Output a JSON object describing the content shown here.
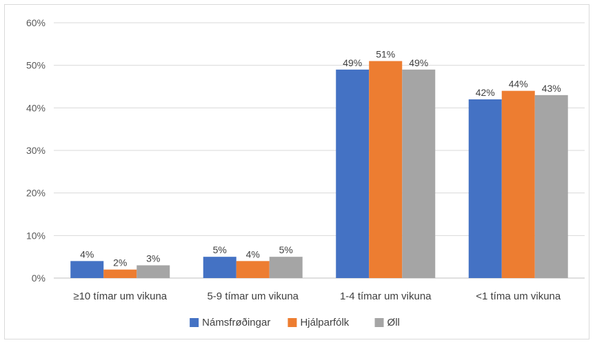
{
  "chart_data": {
    "type": "bar",
    "title": "",
    "xlabel": "",
    "ylabel": "",
    "ylim": [
      0,
      60
    ],
    "y_ticks": [
      0,
      10,
      20,
      30,
      40,
      50,
      60
    ],
    "y_tick_labels": [
      "0%",
      "10%",
      "20%",
      "30%",
      "40%",
      "50%",
      "60%"
    ],
    "grid": true,
    "legend_position": "bottom",
    "categories": [
      "≥10 tímar um vikuna",
      "5-9 tímar um vikuna",
      "1-4 tímar um vikuna",
      "<1 tíma um vikuna"
    ],
    "series": [
      {
        "name": "Námsfrøðingar",
        "color": "#4472c4",
        "values": [
          4,
          5,
          49,
          42
        ],
        "labels": [
          "4%",
          "5%",
          "49%",
          "42%"
        ]
      },
      {
        "name": "Hjálparfólk",
        "color": "#ed7d31",
        "values": [
          2,
          4,
          51,
          44
        ],
        "labels": [
          "2%",
          "4%",
          "51%",
          "44%"
        ]
      },
      {
        "name": "Øll",
        "color": "#a5a5a5",
        "values": [
          3,
          5,
          49,
          43
        ],
        "labels": [
          "3%",
          "5%",
          "49%",
          "43%"
        ]
      }
    ]
  }
}
